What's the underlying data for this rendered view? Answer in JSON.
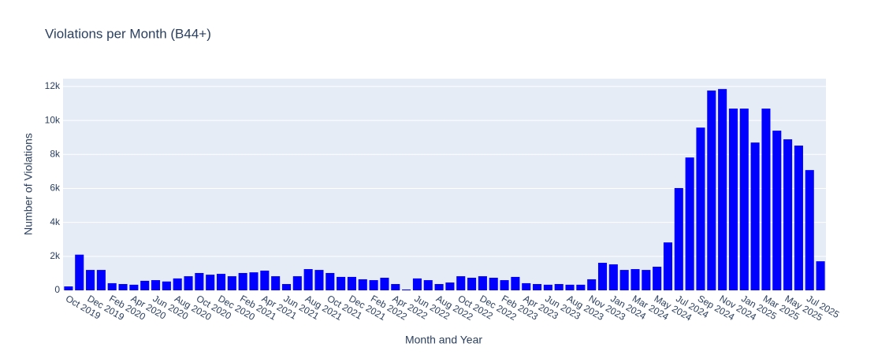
{
  "chart_data": {
    "type": "bar",
    "title": "Violations per Month (B44+)",
    "xlabel": "Month and Year",
    "ylabel": "Number of Violations",
    "categories": [
      "Oct 2019",
      null,
      "Dec 2019",
      null,
      "Feb 2020",
      null,
      "Apr 2020",
      null,
      "Jun 2020",
      null,
      "Aug 2020",
      null,
      "Oct 2020",
      null,
      "Dec 2020",
      null,
      "Feb 2021",
      null,
      "Apr 2021",
      null,
      "Jun 2021",
      null,
      "Aug 2021",
      null,
      "Oct 2021",
      null,
      "Dec 2021",
      null,
      "Feb 2022",
      null,
      "Apr 2022",
      null,
      "Jun 2022",
      null,
      "Aug 2022",
      null,
      "Oct 2022",
      null,
      "Dec 2022",
      null,
      "Feb 2023",
      null,
      "Apr 2023",
      null,
      "Jun 2023",
      null,
      "Aug 2023",
      null,
      "Nov 2023",
      null,
      "Jan 2024",
      null,
      "Mar 2024",
      null,
      "May 2024",
      null,
      "Jul 2024",
      null,
      "Sep 2024",
      null,
      "Nov 2024",
      null,
      "Jan 2025",
      null,
      "Mar 2025",
      null,
      "May 2025",
      null,
      "Jul 2025",
      null
    ],
    "values": [
      230,
      2100,
      1200,
      1200,
      420,
      370,
      330,
      560,
      600,
      520,
      700,
      830,
      1020,
      920,
      970,
      830,
      1020,
      1060,
      1160,
      830,
      370,
      830,
      1250,
      1200,
      1020,
      790,
      790,
      650,
      600,
      740,
      370,
      50,
      700,
      600,
      370,
      460,
      830,
      740,
      830,
      740,
      600,
      790,
      420,
      370,
      330,
      370,
      330,
      330,
      650,
      1620,
      1530,
      1200,
      1250,
      1200,
      1390,
      2820,
      6020,
      7820,
      9580,
      11760,
      11850,
      10700,
      10700,
      8700,
      10700,
      9400,
      8890,
      8520,
      7080,
      1710
    ],
    "color": "#0000ff",
    "ylim": [
      0,
      12460
    ],
    "yticks": [
      0,
      {
        "value": 2000,
        "label": "2k"
      },
      {
        "value": 4000,
        "label": "4k"
      },
      {
        "value": 6000,
        "label": "6k"
      },
      {
        "value": 8000,
        "label": "8k"
      },
      {
        "value": 10000,
        "label": "10k"
      },
      {
        "value": 12000,
        "label": "12k"
      }
    ],
    "grid": true
  }
}
